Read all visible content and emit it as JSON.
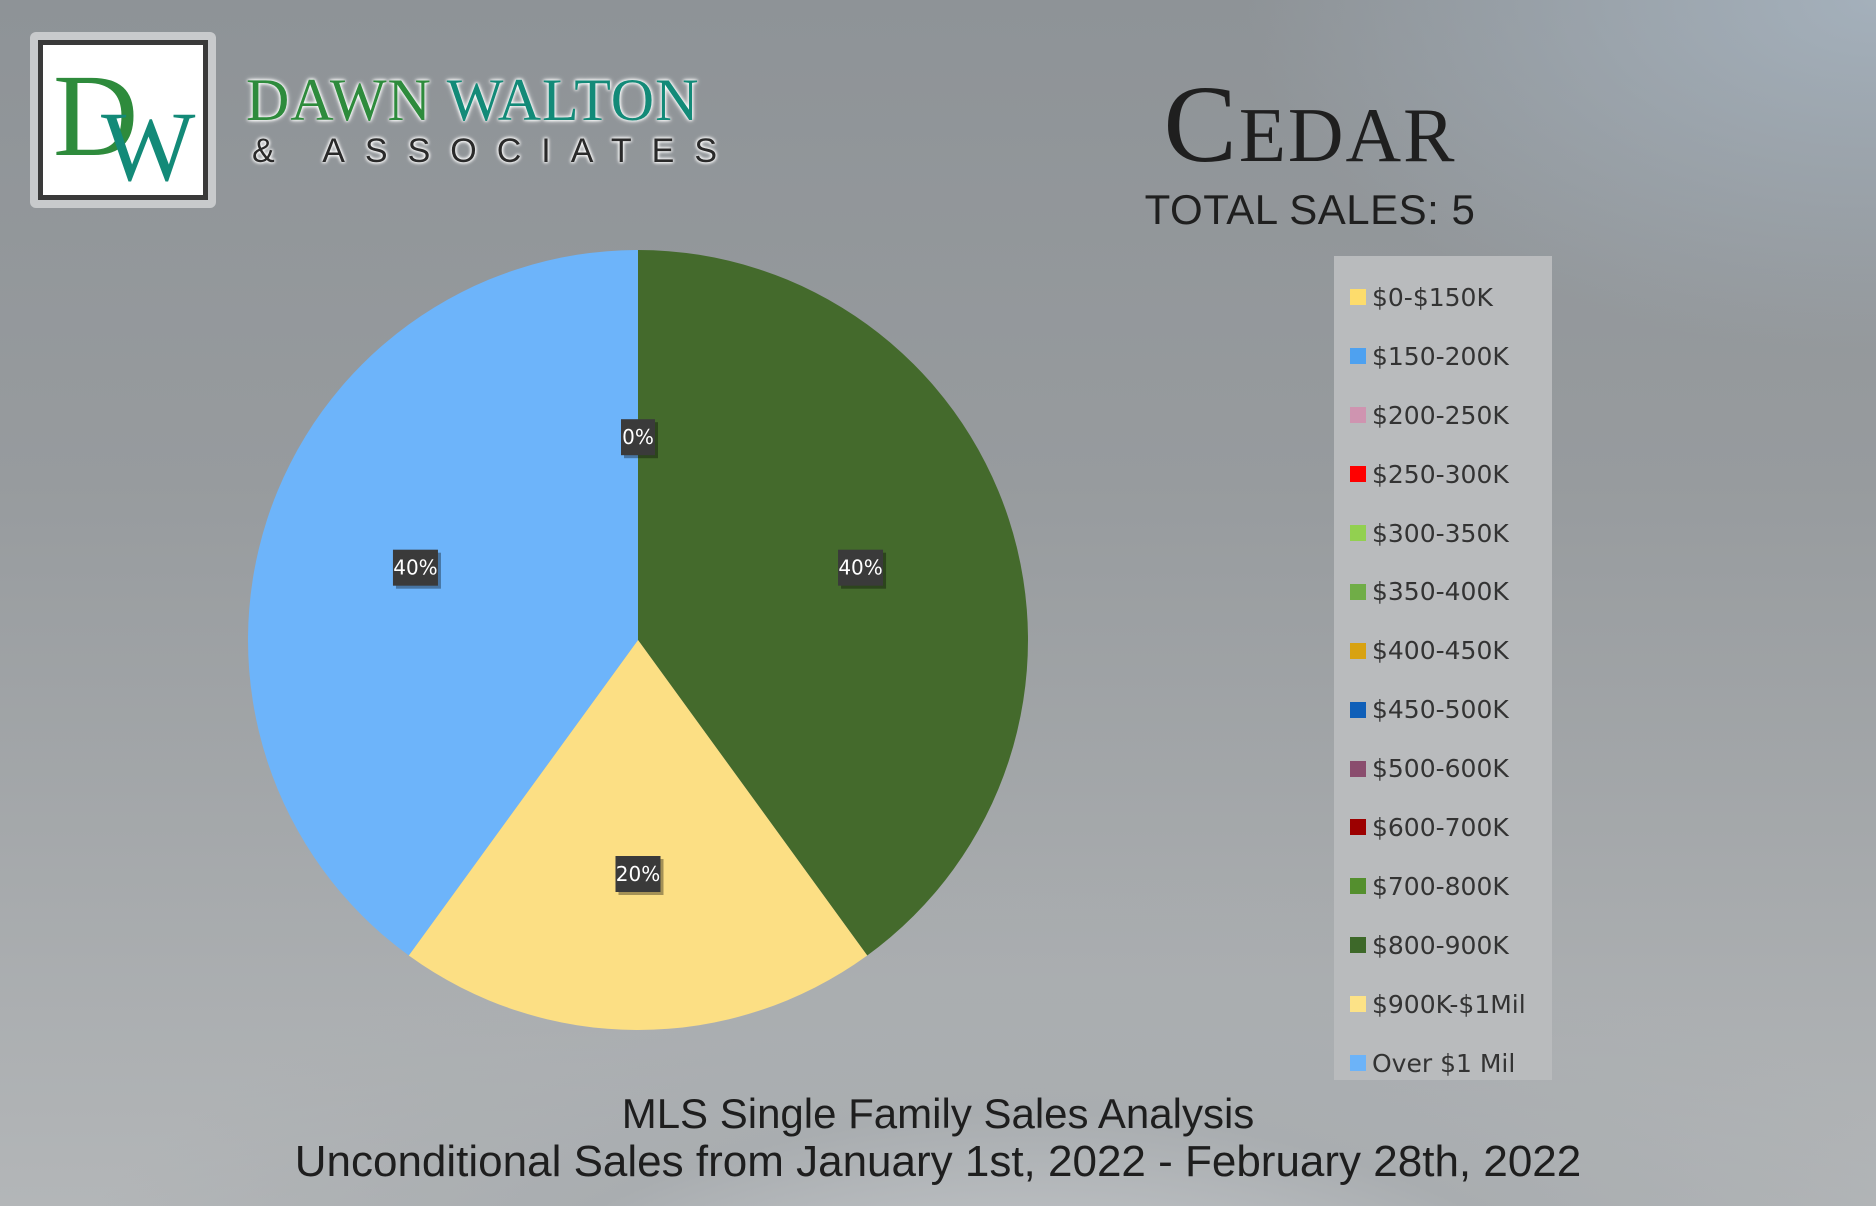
{
  "brand": {
    "name_part1": "DAWN",
    "name_part2": "WALTON",
    "tagline": "& ASSOCIATES",
    "monogram_d": "D",
    "monogram_w": "W",
    "colors": {
      "d": "#2e8b3c",
      "w": "#138a78"
    }
  },
  "header": {
    "title": "Cedar",
    "total_sales": "TOTAL SALES: 5"
  },
  "footer": {
    "line1": "MLS Single Family Sales Analysis",
    "line2": "Unconditional Sales from January 1st, 2022 - February 28th, 2022"
  },
  "legend": [
    {
      "label": "$0-$150K",
      "color": "#fddc6c"
    },
    {
      "label": "$150-200K",
      "color": "#4ea1f0"
    },
    {
      "label": "$200-250K",
      "color": "#cf94b0"
    },
    {
      "label": "$250-300K",
      "color": "#ff0000"
    },
    {
      "label": "$300-350K",
      "color": "#92d050"
    },
    {
      "label": "$350-400K",
      "color": "#70ad47"
    },
    {
      "label": "$400-450K",
      "color": "#d8a211"
    },
    {
      "label": "$450-500K",
      "color": "#0f5fb8"
    },
    {
      "label": "$500-600K",
      "color": "#8a4d6e"
    },
    {
      "label": "$600-700K",
      "color": "#9c0000"
    },
    {
      "label": "$700-800K",
      "color": "#548f2e"
    },
    {
      "label": "$800-900K",
      "color": "#3d6829"
    },
    {
      "label": "$900K-$1Mil",
      "color": "#fce287"
    },
    {
      "label": "Over $1 Mil",
      "color": "#6cb3f8"
    }
  ],
  "chart_data": {
    "type": "pie",
    "title": "Cedar",
    "categories": [
      "$0-$150K",
      "$150-200K",
      "$200-250K",
      "$250-300K",
      "$300-350K",
      "$350-400K",
      "$400-450K",
      "$450-500K",
      "$500-600K",
      "$600-700K",
      "$700-800K",
      "$800-900K",
      "$900K-$1Mil",
      "Over $1 Mil"
    ],
    "values": [
      0,
      0,
      0,
      0,
      0,
      0,
      0,
      0,
      0,
      0,
      0,
      40,
      20,
      40
    ],
    "unit": "%",
    "start_angle_deg": 0,
    "direction": "clockwise",
    "slices": [
      {
        "category": "$800-900K",
        "value": 40,
        "label": "40%",
        "color": "#446a2c"
      },
      {
        "category": "$900K-$1Mil",
        "value": 20,
        "label": "20%",
        "color": "#fcdf84"
      },
      {
        "category": "Over $1 Mil",
        "value": 40,
        "label": "40%",
        "color": "#6db4fa"
      }
    ],
    "zero_label": "0%",
    "legend_position": "right"
  }
}
